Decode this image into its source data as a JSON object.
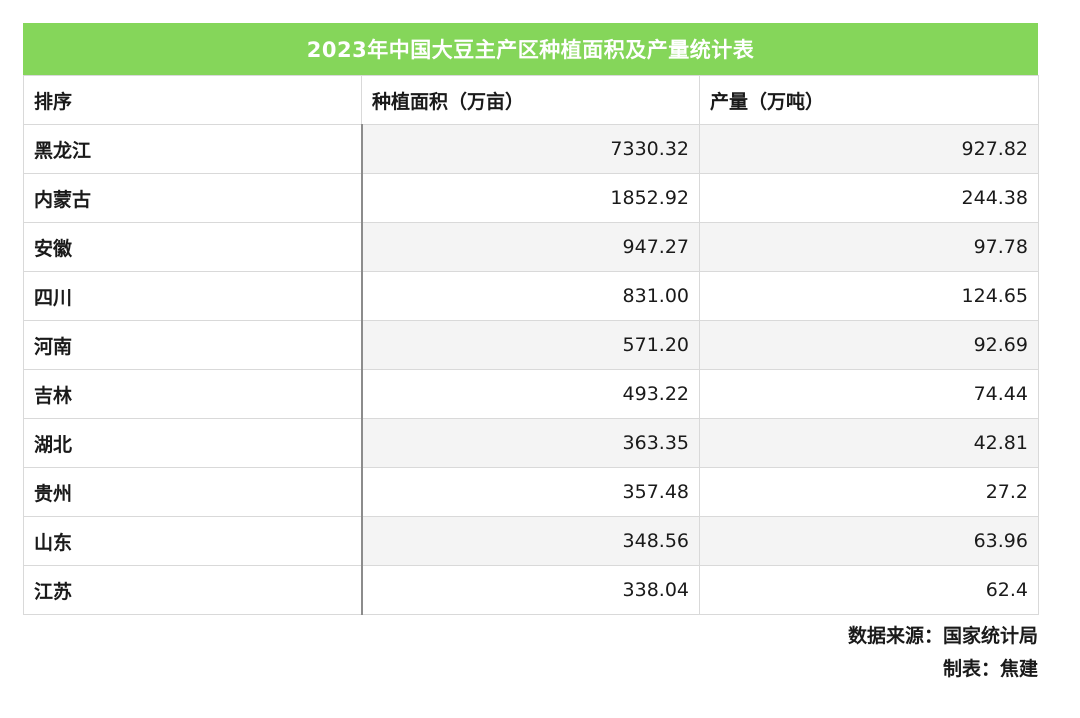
{
  "table": {
    "title": "2023年中国大豆主产区种植面积及产量统计表",
    "headers": [
      "排序",
      "种植面积（万亩）",
      "产量（万吨）"
    ],
    "rows": [
      {
        "region": "黑龙江",
        "area": "7330.32",
        "output": "927.82"
      },
      {
        "region": "内蒙古",
        "area": "1852.92",
        "output": "244.38"
      },
      {
        "region": "安徽",
        "area": "947.27",
        "output": "97.78"
      },
      {
        "region": "四川",
        "area": "831.00",
        "output": "124.65"
      },
      {
        "region": "河南",
        "area": "571.20",
        "output": "92.69"
      },
      {
        "region": "吉林",
        "area": "493.22",
        "output": "74.44"
      },
      {
        "region": "湖北",
        "area": "363.35",
        "output": "42.81"
      },
      {
        "region": "贵州",
        "area": "357.48",
        "output": "27.2"
      },
      {
        "region": "山东",
        "area": "348.56",
        "output": "63.96"
      },
      {
        "region": "江苏",
        "area": "338.04",
        "output": "62.4"
      }
    ]
  },
  "footer": {
    "source": "数据来源：国家统计局",
    "author": "制表：焦建"
  },
  "colors": {
    "title_bg": "#85d65a",
    "title_text": "#ffffff",
    "zebra": "#f4f4f4"
  }
}
